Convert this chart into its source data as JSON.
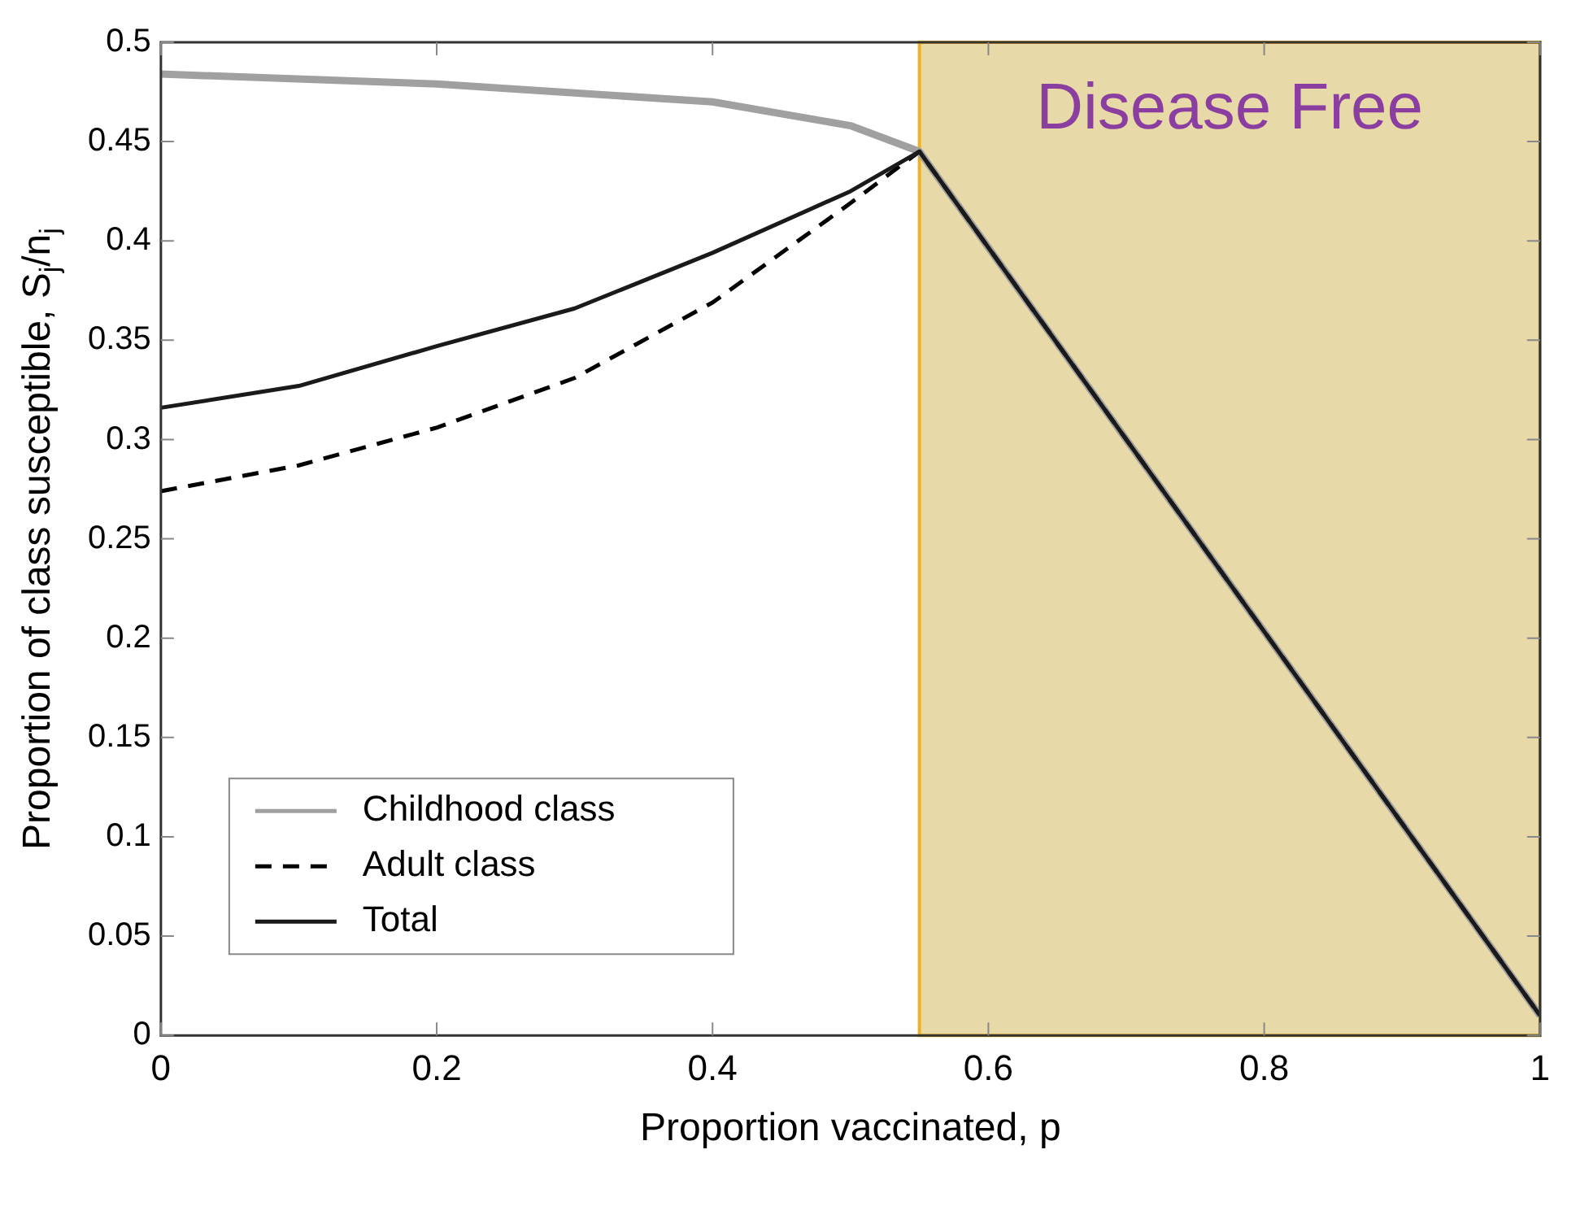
{
  "chart_data": {
    "type": "line",
    "xlabel": "Proportion vaccinated, p",
    "ylabel": "Proportion of class susceptible, S$_{j}$/n$_{j}$",
    "xlim": [
      0,
      1
    ],
    "xticks": [
      0,
      0.2,
      0.4,
      0.6,
      0.8,
      1
    ],
    "ylim": [
      0,
      0.5
    ],
    "yticks": [
      0,
      0.05,
      0.1,
      0.15,
      0.2,
      0.25,
      0.3,
      0.35,
      0.4,
      0.45,
      0.5
    ],
    "grid": false,
    "legend": "bottom left",
    "marker": "none",
    "bands": [
      {
        "axis": "x",
        "from": 0.55,
        "to": 1,
        "label": "Disease Free",
        "color": "#e8d9a8"
      }
    ],
    "series": [
      {
        "name": "Childhood class",
        "color": "#a0a0a0",
        "line_style": "solid",
        "x": [
          0,
          0.2,
          0.4,
          0.5,
          0.55,
          1
        ],
        "values": [
          0.484,
          0.479,
          0.47,
          0.458,
          0.445,
          0.01
        ]
      },
      {
        "name": "Adult class",
        "color": "#000000",
        "line_style": "dashed",
        "x": [
          0,
          0.1,
          0.2,
          0.3,
          0.4,
          0.5,
          0.55,
          1
        ],
        "values": [
          0.274,
          0.287,
          0.306,
          0.331,
          0.369,
          0.419,
          0.445,
          0.01
        ]
      },
      {
        "name": "Total",
        "color": "#1a1a1a",
        "line_style": "solid",
        "x": [
          0,
          0.1,
          0.2,
          0.3,
          0.4,
          0.5,
          0.55,
          1
        ],
        "values": [
          0.316,
          0.327,
          0.347,
          0.366,
          0.394,
          0.425,
          0.445,
          0.01
        ]
      }
    ]
  }
}
